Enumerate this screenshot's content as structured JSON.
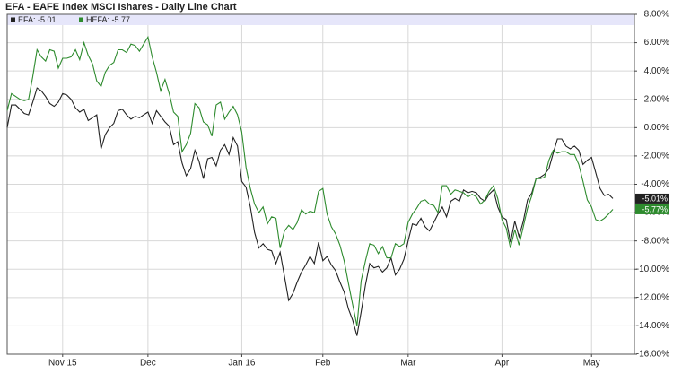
{
  "chart_data": {
    "type": "line",
    "title": "EFA - EAFE Index MSCI Ishares - Daily Line Chart",
    "categories": [
      null,
      null,
      null,
      null,
      null,
      null,
      null,
      null,
      null,
      null,
      null,
      null,
      null,
      "Nov 15",
      null,
      null,
      null,
      null,
      null,
      null,
      null,
      null,
      null,
      null,
      null,
      null,
      null,
      null,
      null,
      null,
      null,
      null,
      null,
      "Dec",
      null,
      null,
      null,
      null,
      null,
      null,
      null,
      null,
      null,
      null,
      null,
      null,
      null,
      null,
      null,
      null,
      null,
      null,
      null,
      null,
      null,
      "Jan 16",
      null,
      null,
      null,
      null,
      null,
      null,
      null,
      null,
      null,
      null,
      null,
      null,
      null,
      null,
      null,
      null,
      null,
      null,
      "Feb",
      null,
      null,
      null,
      null,
      null,
      null,
      null,
      null,
      null,
      null,
      null,
      null,
      null,
      null,
      null,
      null,
      null,
      null,
      null,
      "Mar",
      null,
      null,
      null,
      null,
      null,
      null,
      null,
      null,
      null,
      null,
      null,
      null,
      null,
      null,
      null,
      null,
      null,
      null,
      null,
      null,
      null,
      "Apr",
      null,
      null,
      null,
      null,
      null,
      null,
      null,
      null,
      null,
      null,
      null,
      null,
      null,
      null,
      null,
      null,
      null,
      null,
      null,
      null,
      "May",
      null,
      null,
      null,
      null,
      null
    ],
    "series": [
      {
        "name": "EFA: -5.01",
        "last_label": "-5.01%",
        "color": "#222222",
        "values": [
          0,
          1.6,
          1.6,
          1.3,
          1.0,
          0.9,
          1.8,
          2.8,
          2.6,
          2.2,
          1.7,
          1.5,
          1.8,
          2.4,
          2.3,
          2.0,
          1.4,
          1.1,
          1.3,
          0.5,
          0.7,
          0.9,
          -1.5,
          -0.5,
          0.0,
          0.3,
          1.2,
          1.3,
          0.9,
          0.6,
          0.8,
          0.7,
          0.9,
          1.1,
          0.3,
          1.2,
          0.8,
          0.4,
          0.1,
          -1.2,
          -1.0,
          -2.5,
          -3.4,
          -2.9,
          -1.6,
          -2.4,
          -3.6,
          -2.2,
          -2.1,
          -2.7,
          -1.6,
          -1.2,
          -1.9,
          -0.7,
          -1.3,
          -3.8,
          -4.2,
          -5.6,
          -7.4,
          -8.5,
          -8.2,
          -8.6,
          -8.7,
          -9.6,
          -8.8,
          -10.5,
          -12.2,
          -11.7,
          -10.9,
          -10.2,
          -9.7,
          -9.1,
          -9.6,
          -8.1,
          -9.4,
          -9.1,
          -9.7,
          -10.1,
          -10.9,
          -11.6,
          -12.8,
          -13.6,
          -14.7,
          -13.0,
          -11.1,
          -9.6,
          -9.9,
          -9.8,
          -10.2,
          -9.9,
          -9.2,
          -10.4,
          -10.0,
          -9.3,
          -8.0,
          -6.8,
          -6.9,
          -6.4,
          -7.0,
          -7.3,
          -6.7,
          -6.1,
          -5.6,
          -6.3,
          -5.2,
          -5.0,
          -5.2,
          -4.4,
          -4.6,
          -4.5,
          -4.6,
          -5.0,
          -5.2,
          -4.7,
          -4.4,
          -5.6,
          -6.3,
          -6.5,
          -8.1,
          -6.6,
          -7.7,
          -6.6,
          -5.1,
          -4.6,
          -3.6,
          -3.5,
          -3.3,
          -2.9,
          -1.8,
          -0.8,
          -0.8,
          -1.3,
          -1.5,
          -1.3,
          -1.6,
          -2.6,
          -2.3,
          -2.1,
          -3.2,
          -4.3,
          -4.8,
          -4.7,
          -5.01
        ]
      },
      {
        "name": "HEFA: -5.77",
        "last_label": "-5.77%",
        "color": "#2e8b2e",
        "values": [
          1.2,
          2.4,
          2.2,
          2.0,
          1.9,
          2.0,
          3.6,
          5.5,
          5.0,
          4.7,
          5.5,
          5.4,
          4.2,
          4.9,
          4.9,
          5.0,
          5.5,
          4.8,
          6.0,
          5.1,
          4.5,
          3.3,
          2.9,
          3.9,
          4.4,
          4.6,
          5.5,
          5.5,
          5.3,
          5.9,
          5.8,
          5.4,
          5.9,
          6.4,
          5.0,
          3.9,
          2.6,
          3.4,
          2.4,
          1.1,
          0.8,
          -1.7,
          -1.2,
          -0.4,
          1.7,
          1.4,
          0.4,
          0.2,
          -0.6,
          1.6,
          1.8,
          0.6,
          1.1,
          1.5,
          0.9,
          -0.3,
          -2.8,
          -4.3,
          -5.4,
          -6.0,
          -5.6,
          -6.8,
          -6.3,
          -6.4,
          -8.5,
          -7.3,
          -6.9,
          -7.2,
          -6.7,
          -5.8,
          -6.1,
          -5.9,
          -6.0,
          -4.5,
          -4.3,
          -6.1,
          -7.0,
          -7.5,
          -8.3,
          -9.4,
          -11.0,
          -12.5,
          -14.0,
          -10.8,
          -9.4,
          -8.2,
          -8.3,
          -8.9,
          -8.4,
          -9.2,
          -9.2,
          -8.2,
          -8.4,
          -8.2,
          -6.7,
          -6.1,
          -5.7,
          -5.2,
          -5.1,
          -5.4,
          -5.5,
          -6.0,
          -4.1,
          -4.1,
          -4.7,
          -4.4,
          -4.5,
          -4.6,
          -4.9,
          -4.7,
          -4.9,
          -5.4,
          -5.1,
          -4.5,
          -4.1,
          -5.0,
          -6.5,
          -7.1,
          -8.5,
          -7.2,
          -8.3,
          -7.0,
          -5.7,
          -4.8,
          -3.6,
          -3.6,
          -3.5,
          -2.3,
          -1.6,
          -1.8,
          -1.7,
          -1.7,
          -1.9,
          -1.9,
          -2.6,
          -3.8,
          -5.1,
          -5.6,
          -6.5,
          -6.6,
          -6.4,
          -6.1,
          -5.77
        ]
      }
    ],
    "ylim": [
      -16,
      8
    ],
    "yticks": [
      {
        "value": 8,
        "label": "8.00%"
      },
      {
        "value": 6,
        "label": "6.00%"
      },
      {
        "value": 4,
        "label": "4.00%"
      },
      {
        "value": 2,
        "label": "2.00%"
      },
      {
        "value": 0,
        "label": "0.00%"
      },
      {
        "value": -2,
        "label": "-2.00%"
      },
      {
        "value": -4,
        "label": "-4.00%"
      },
      {
        "value": -6,
        "label": "-6.00%"
      },
      {
        "value": -8,
        "label": "-8.00%"
      },
      {
        "value": -10,
        "label": "-10.00%"
      },
      {
        "value": -12,
        "label": "-12.00%"
      },
      {
        "value": -14,
        "label": "-14.00%"
      },
      {
        "value": -16,
        "label": "-16.00%"
      }
    ],
    "grid": true
  }
}
